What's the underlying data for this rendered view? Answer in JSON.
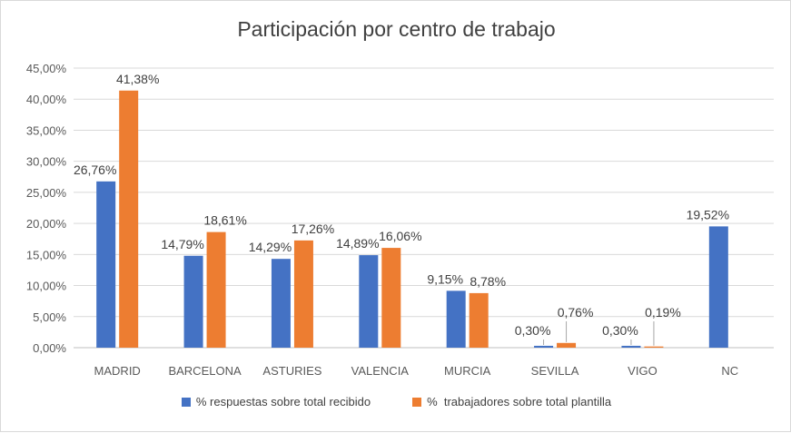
{
  "chart_data": {
    "type": "bar",
    "title": "Participación por centro de trabajo",
    "categories": [
      "MADRID",
      "BARCELONA",
      "ASTURIES",
      "VALENCIA",
      "MURCIA",
      "SEVILLA",
      "VIGO",
      "NC"
    ],
    "series": [
      {
        "name": "% respuestas sobre total recibido",
        "color": "#4472c4",
        "values": [
          26.76,
          14.79,
          14.29,
          14.89,
          9.15,
          0.3,
          0.3,
          19.52
        ],
        "labels": [
          "26,76%",
          "14,79%",
          "14,29%",
          "14,89%",
          "9,15%",
          "0,30%",
          "0,30%",
          "19,52%"
        ]
      },
      {
        "name": "%  trabajadores sobre total plantilla",
        "color": "#ed7d31",
        "values": [
          41.38,
          18.61,
          17.26,
          16.06,
          8.78,
          0.76,
          0.19,
          null
        ],
        "labels": [
          "41,38%",
          "18,61%",
          "17,26%",
          "16,06%",
          "8,78%",
          "0,76%",
          "0,19%",
          null
        ]
      }
    ],
    "y_ticks": [
      "0,00%",
      "5,00%",
      "10,00%",
      "15,00%",
      "20,00%",
      "25,00%",
      "30,00%",
      "35,00%",
      "40,00%",
      "45,00%"
    ],
    "ylim": [
      0,
      45
    ],
    "grid": true,
    "legend_position": "bottom",
    "xlabel": "",
    "ylabel": ""
  }
}
